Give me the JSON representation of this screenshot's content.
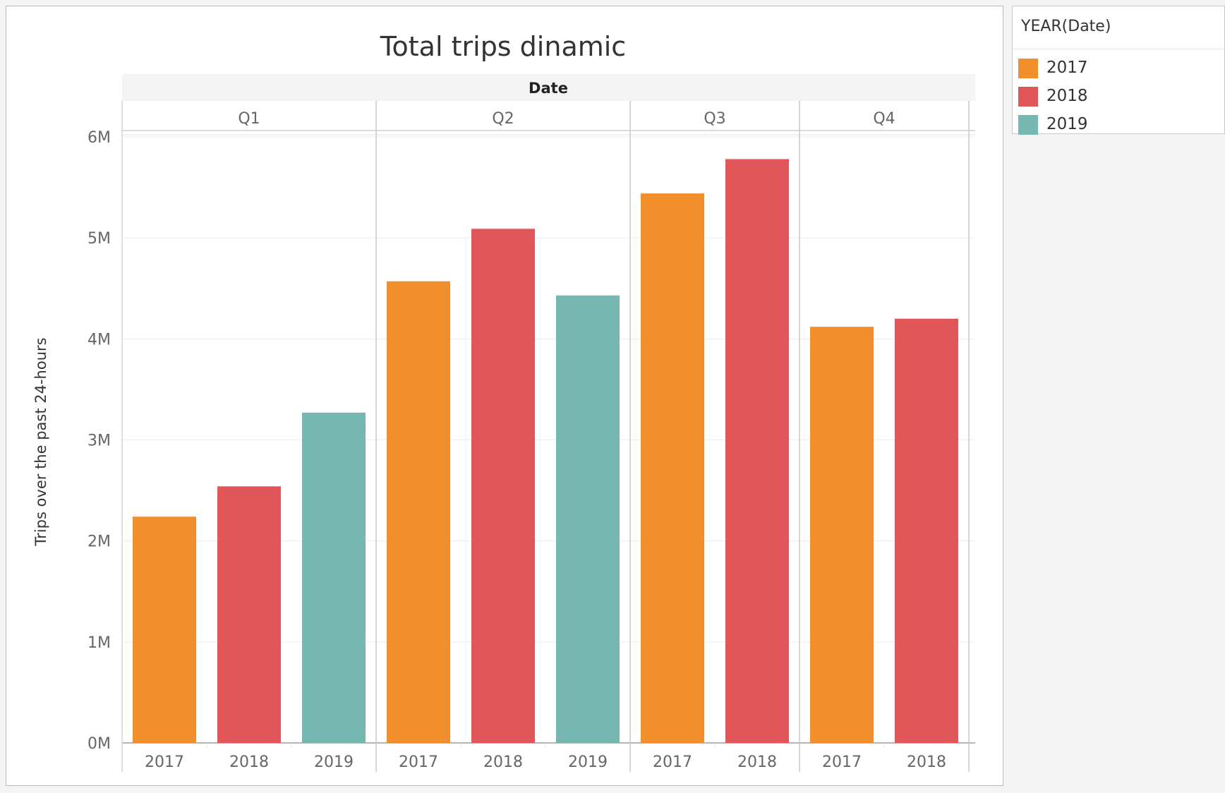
{
  "chart_data": {
    "type": "bar",
    "title": "Total trips dinamic",
    "column_header": "Date",
    "ylabel": "Trips over the past 24-hours",
    "ylim": [
      0,
      6000000
    ],
    "y_ticks": [
      {
        "value": 0,
        "label": "0M"
      },
      {
        "value": 1000000,
        "label": "1M"
      },
      {
        "value": 2000000,
        "label": "2M"
      },
      {
        "value": 3000000,
        "label": "3M"
      },
      {
        "value": 4000000,
        "label": "4M"
      },
      {
        "value": 5000000,
        "label": "5M"
      },
      {
        "value": 6000000,
        "label": "6M"
      }
    ],
    "grid": true,
    "legend_placement": "right",
    "groups": [
      {
        "quarter": "Q1",
        "bars": [
          {
            "year": "2017",
            "value": 2240000
          },
          {
            "year": "2018",
            "value": 2540000
          },
          {
            "year": "2019",
            "value": 3270000
          }
        ]
      },
      {
        "quarter": "Q2",
        "bars": [
          {
            "year": "2017",
            "value": 4570000
          },
          {
            "year": "2018",
            "value": 5090000
          },
          {
            "year": "2019",
            "value": 4430000
          }
        ]
      },
      {
        "quarter": "Q3",
        "bars": [
          {
            "year": "2017",
            "value": 5440000
          },
          {
            "year": "2018",
            "value": 5780000
          }
        ]
      },
      {
        "quarter": "Q4",
        "bars": [
          {
            "year": "2017",
            "value": 4120000
          },
          {
            "year": "2018",
            "value": 4200000
          }
        ]
      }
    ],
    "colors": {
      "2017": "#f28e2b",
      "2018": "#e15759",
      "2019": "#76b7b2"
    }
  },
  "legend": {
    "title": "YEAR(Date)",
    "items": [
      {
        "label": "2017",
        "color": "#f28e2b"
      },
      {
        "label": "2018",
        "color": "#e15759"
      },
      {
        "label": "2019",
        "color": "#76b7b2"
      }
    ]
  }
}
